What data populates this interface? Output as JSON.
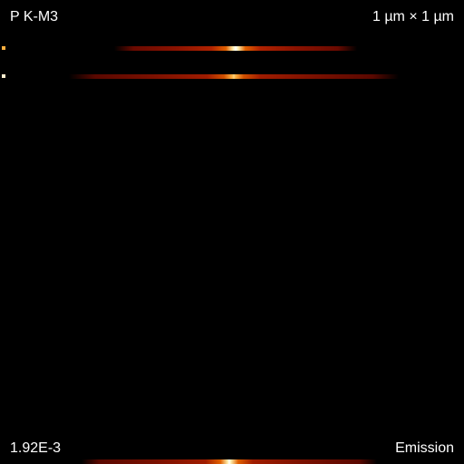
{
  "labels": {
    "top_left": "P K-M3",
    "top_right": "1 µm × 1 µm",
    "bottom_left": "1.92E-3",
    "bottom_right": "Emission"
  },
  "colors": {
    "background": "#000000",
    "text": "#ffffff",
    "stripe_dark": "#6a0a00",
    "stripe_mid": "#b02200",
    "stripe_hot": "#ffffff"
  }
}
